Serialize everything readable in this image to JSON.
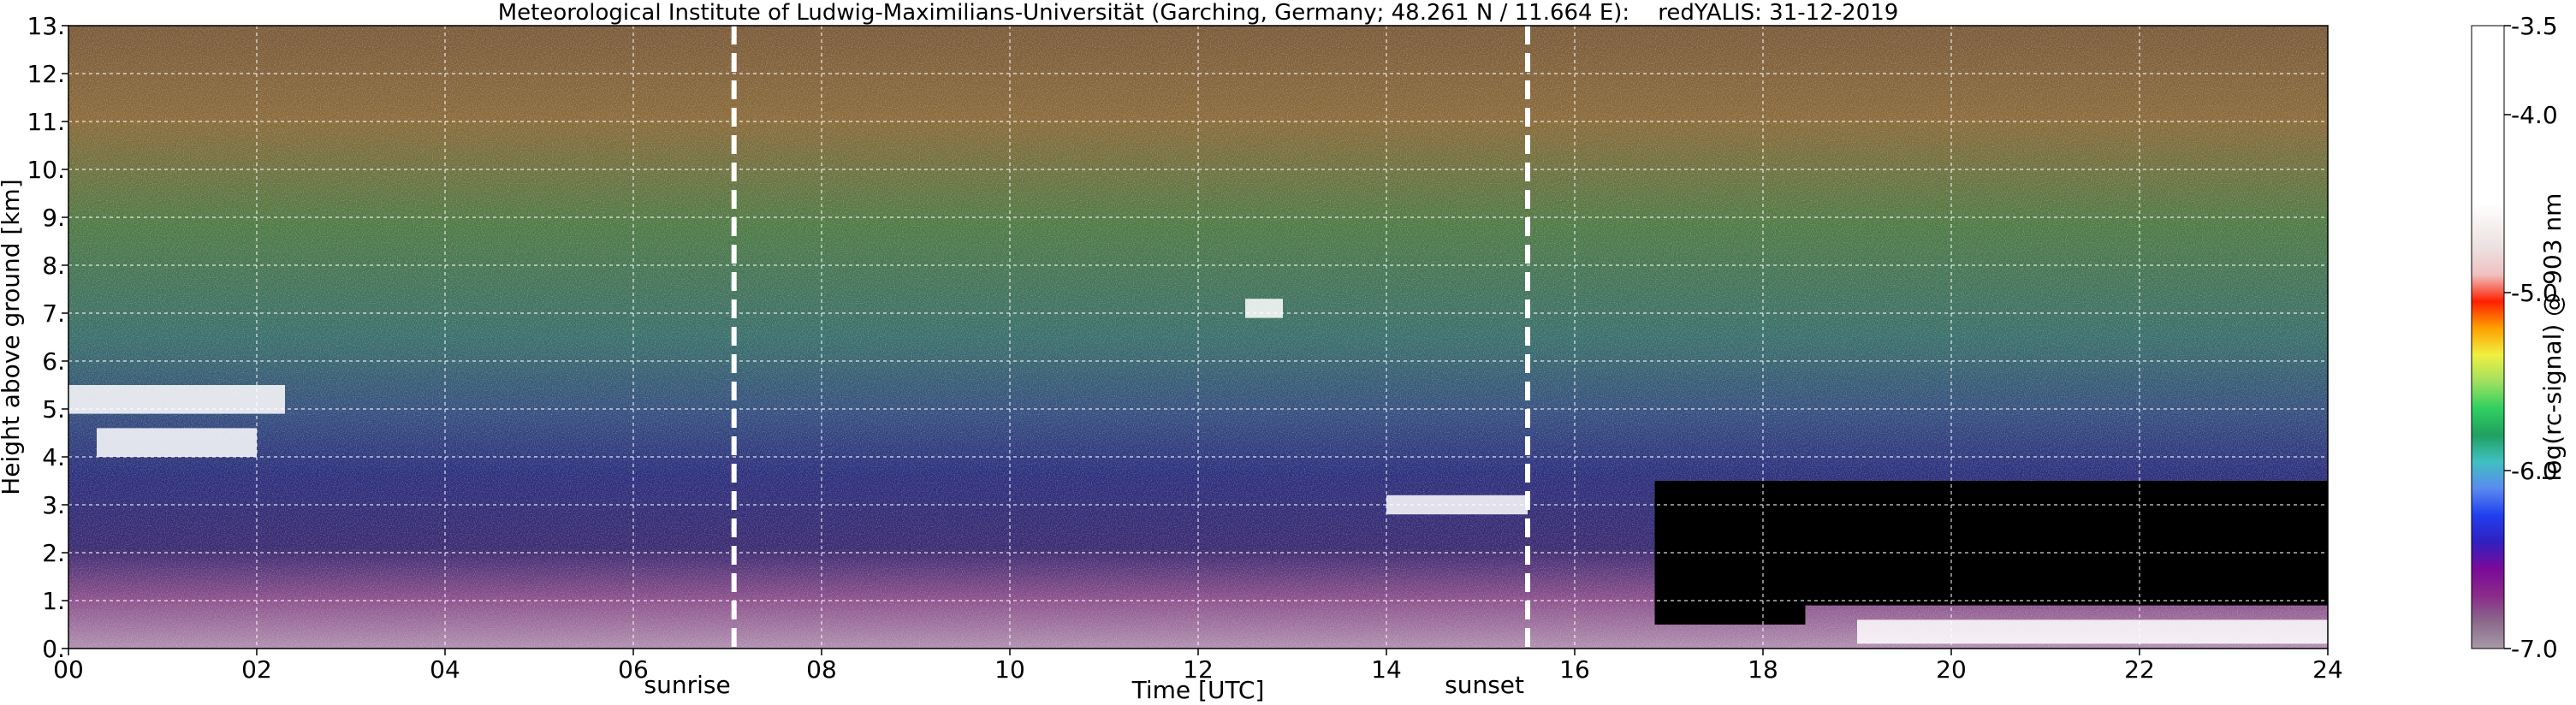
{
  "chart_data": {
    "type": "heatmap",
    "title": "Meteorological Institute of Ludwig-Maximilians-Universität (Garching, Germany; 48.261 N / 11.664 E):    redYALIS: 31-12-2019",
    "xlabel": "Time [UTC]",
    "ylabel": "Height above ground [km]",
    "colorbar_label": "log(rc-signal) @ 903 nm",
    "xlim": [
      0,
      24
    ],
    "ylim": [
      0,
      13
    ],
    "x_tick_labels": [
      "00",
      "02",
      "04",
      "06",
      "08",
      "10",
      "12",
      "14",
      "16",
      "18",
      "20",
      "22",
      "24"
    ],
    "x_ticks": [
      0,
      2,
      4,
      6,
      8,
      10,
      12,
      14,
      16,
      18,
      20,
      22,
      24
    ],
    "y_tick_labels": [
      "0.",
      "1.",
      "2.",
      "3.",
      "4.",
      "5.",
      "6.",
      "7.",
      "8.",
      "9.",
      "10.",
      "11.",
      "12.",
      "13."
    ],
    "y_ticks": [
      0,
      1,
      2,
      3,
      4,
      5,
      6,
      7,
      8,
      9,
      10,
      11,
      12,
      13
    ],
    "grid": true,
    "colorbar_range": [
      -7.0,
      -3.5
    ],
    "colorbar_tick_labels": [
      "-3.5",
      "-4.0",
      "-5.0",
      "-6.0",
      "-7.0"
    ],
    "colorbar_ticks": [
      -3.5,
      -4.0,
      -5.0,
      -6.0,
      -7.0
    ],
    "colormap_stops": [
      {
        "value": -7.0,
        "color": "#a89aa8"
      },
      {
        "value": -6.85,
        "color": "#8a6a8a"
      },
      {
        "value": -6.7,
        "color": "#8a2a8a"
      },
      {
        "value": -6.55,
        "color": "#7a0a9a"
      },
      {
        "value": -6.4,
        "color": "#3020c0"
      },
      {
        "value": -6.25,
        "color": "#2040f0"
      },
      {
        "value": -6.1,
        "color": "#5a8af0"
      },
      {
        "value": -5.95,
        "color": "#40c0c0"
      },
      {
        "value": -5.8,
        "color": "#20a060"
      },
      {
        "value": -5.65,
        "color": "#30d060"
      },
      {
        "value": -5.5,
        "color": "#a0e060"
      },
      {
        "value": -5.35,
        "color": "#f0f040"
      },
      {
        "value": -5.2,
        "color": "#ffa000"
      },
      {
        "value": -5.05,
        "color": "#ff2000"
      },
      {
        "value": -4.9,
        "color": "#f0c0c0"
      },
      {
        "value": -4.75,
        "color": "#ece0e0"
      },
      {
        "value": -4.5,
        "color": "#ffffff"
      },
      {
        "value": -3.5,
        "color": "#ffffff"
      }
    ],
    "vertical_markers": [
      {
        "label": "sunrise",
        "x": 7.07
      },
      {
        "label": "sunset",
        "x": 15.5
      }
    ],
    "features": [
      {
        "x": [
          0.0,
          2.3
        ],
        "y": [
          4.9,
          5.5
        ]
      },
      {
        "x": [
          0.3,
          2.0
        ],
        "y": [
          4.0,
          4.6
        ]
      },
      {
        "x": [
          14.0,
          15.5
        ],
        "y": [
          2.8,
          3.2
        ]
      },
      {
        "x": [
          12.5,
          12.9
        ],
        "y": [
          6.9,
          7.3
        ]
      },
      {
        "x": [
          19.0,
          24.0
        ],
        "y": [
          0.1,
          0.6
        ]
      }
    ],
    "no_data_blocks": [
      {
        "x": [
          16.85,
          18.45
        ],
        "y": [
          0.5,
          3.5
        ]
      },
      {
        "x": [
          18.45,
          24.0
        ],
        "y": [
          0.9,
          3.5
        ]
      }
    ]
  }
}
